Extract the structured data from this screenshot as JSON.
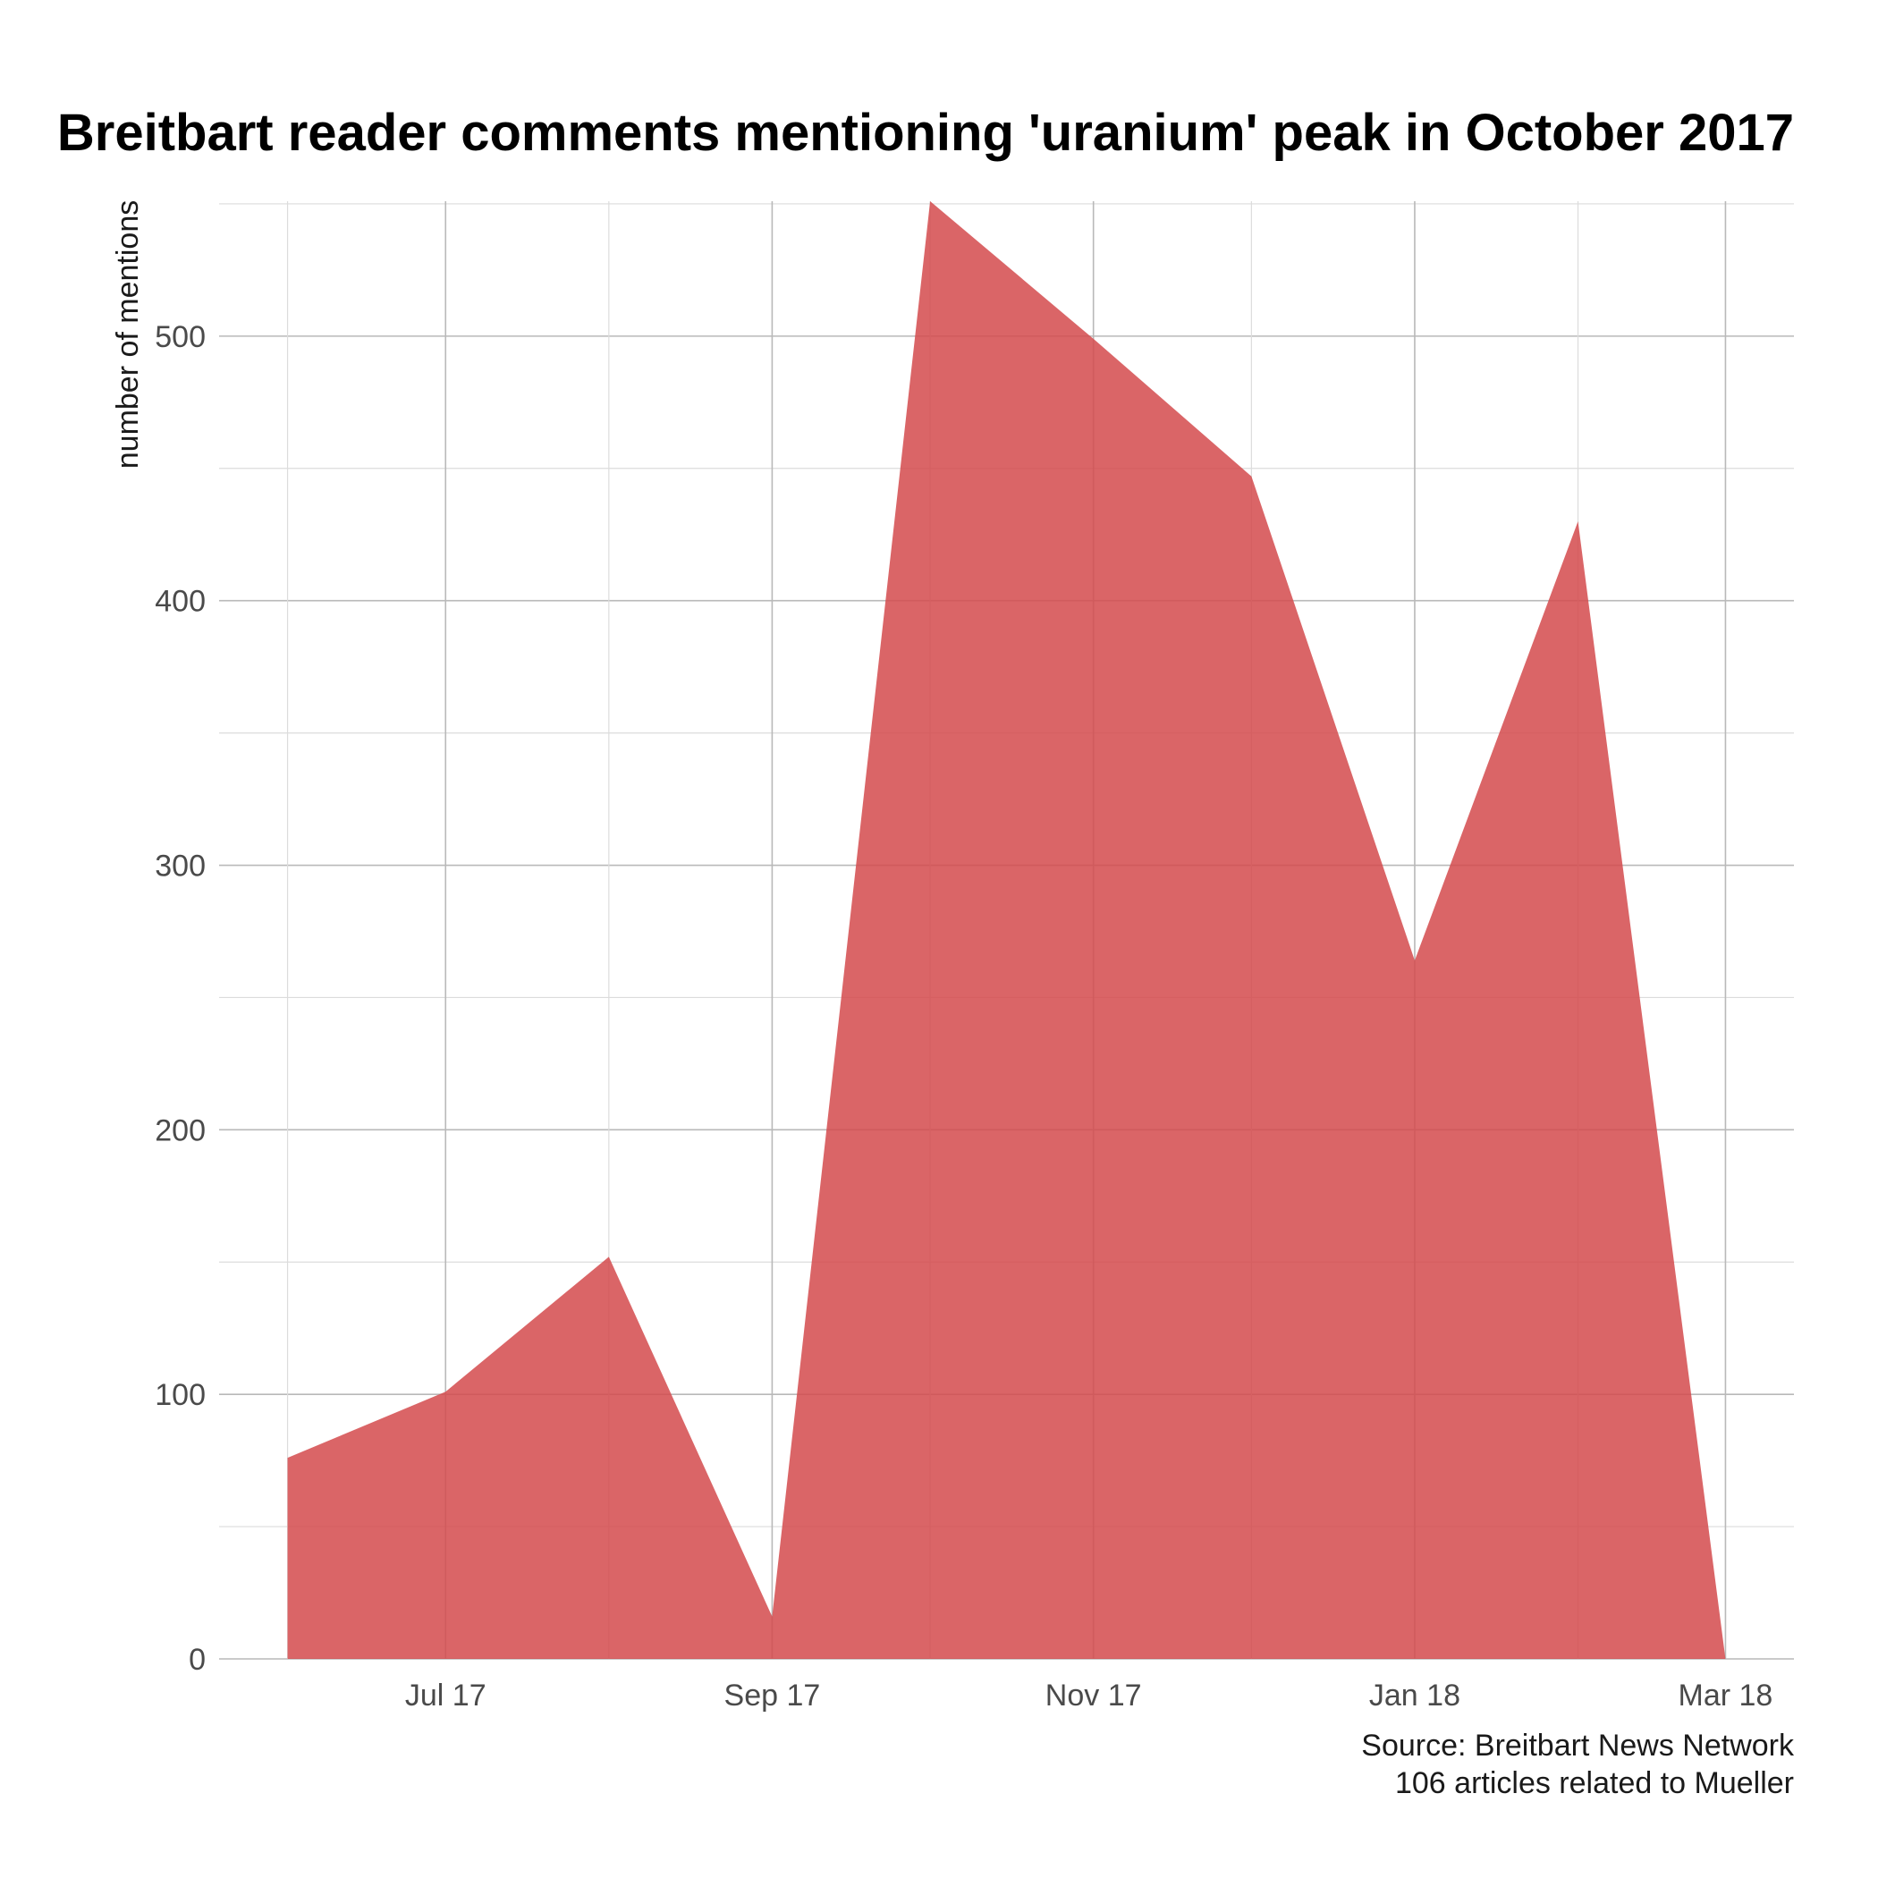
{
  "chart_data": {
    "type": "area",
    "title": "Breitbart reader comments mentioning 'uranium' peak in October 2017",
    "xlabel": "",
    "ylabel": "number of mentions",
    "x": [
      "2017-06-01",
      "2017-07-01",
      "2017-08-01",
      "2017-09-01",
      "2017-10-01",
      "2017-11-01",
      "2017-12-01",
      "2018-01-01",
      "2018-02-01",
      "2018-03-01"
    ],
    "series": [
      {
        "values": [
          76,
          101,
          152,
          16,
          551,
          499,
          447,
          264,
          430,
          0
        ]
      }
    ],
    "xticks": [
      {
        "date": "2017-07-01",
        "label": "Jul 17"
      },
      {
        "date": "2017-09-01",
        "label": "Sep 17"
      },
      {
        "date": "2017-11-01",
        "label": "Nov 17"
      },
      {
        "date": "2018-01-01",
        "label": "Jan 18"
      },
      {
        "date": "2018-03-01",
        "label": "Mar 18"
      }
    ],
    "yticks": [
      0,
      100,
      200,
      300,
      400,
      500
    ],
    "ylim": [
      0,
      551
    ],
    "xlim": [
      "2017-05-19",
      "2018-03-14"
    ],
    "grid": true,
    "fill_color": "#d44a4c",
    "fill_opacity": 0.85,
    "caption": [
      "Source: Breitbart News Network",
      "106 articles related to Mueller"
    ]
  }
}
